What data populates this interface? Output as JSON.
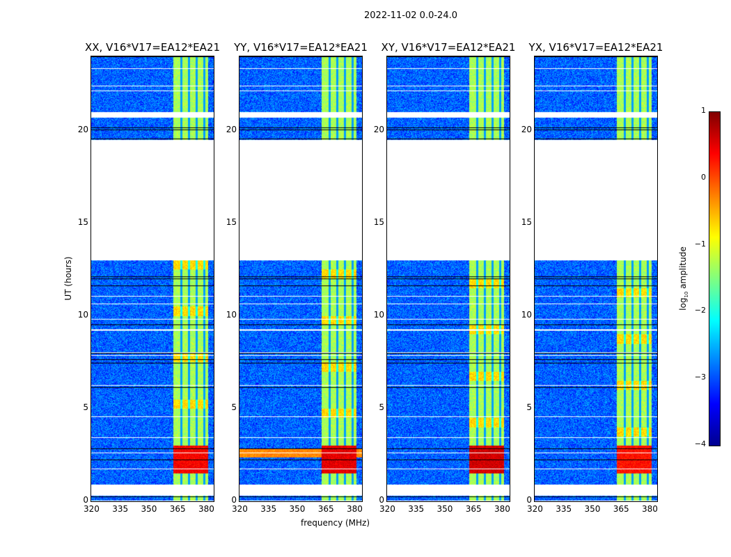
{
  "chart_data": {
    "type": "heatmap",
    "title": "2022-11-02 0.0-24.0",
    "xlabel": "frequency (MHz)",
    "ylabel": "UT (hours)",
    "xlim": [
      320,
      384
    ],
    "ylim": [
      0,
      24
    ],
    "xticks": [
      "320",
      "335",
      "350",
      "365",
      "380"
    ],
    "xtick_values": [
      320,
      335,
      350,
      365,
      380
    ],
    "yticks": [
      "0",
      "5",
      "10",
      "15",
      "20"
    ],
    "ytick_values": [
      0,
      5,
      10,
      15,
      20
    ],
    "colormap": "jet",
    "colorbar": {
      "label_prefix": "log",
      "label_sub": "10",
      "label_suffix": " amplitude",
      "ticks": [
        "1",
        "0",
        "−1",
        "−2",
        "−3",
        "−4"
      ],
      "tick_values": [
        1,
        0,
        -1,
        -2,
        -3,
        -4
      ],
      "range": [
        -4,
        1
      ]
    },
    "data_intervals_hours": [
      [
        0.05,
        0.3
      ],
      [
        0.9,
        13.0
      ],
      [
        19.5,
        20.7
      ],
      [
        21.0,
        24.0
      ]
    ],
    "rfi_band_mhz": [
      363,
      381
    ],
    "rfi_channel_dividers_mhz": [
      367,
      371,
      375,
      379
    ],
    "background_log_amplitude": -2.9,
    "rfi_log_amplitude": -1.3,
    "panels": [
      {
        "title": "XX, V16*V17=EA12*EA21",
        "hot_hours": [
          1.5,
          3.0
        ],
        "hot_level": 0.4,
        "broadband_hours": null
      },
      {
        "title": "YY, V16*V17=EA12*EA21",
        "hot_hours": [
          1.5,
          3.0
        ],
        "hot_level": 0.5,
        "broadband_hours": [
          2.35,
          2.85
        ]
      },
      {
        "title": "XY, V16*V17=EA12*EA21",
        "hot_hours": [
          1.5,
          3.0
        ],
        "hot_level": 0.6,
        "broadband_hours": null
      },
      {
        "title": "YX, V16*V17=EA12*EA21",
        "hot_hours": [
          1.5,
          3.0
        ],
        "hot_level": 0.3,
        "broadband_hours": null
      }
    ]
  }
}
